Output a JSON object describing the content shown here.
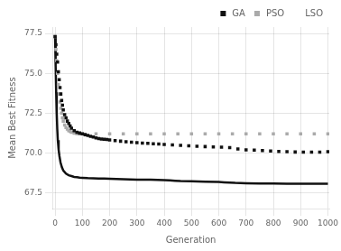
{
  "chart_data": {
    "type": "line",
    "xlabel": "Generation",
    "ylabel": "Mean Best Fitness",
    "xlim": [
      -10,
      1005
    ],
    "ylim": [
      66.5,
      77.9
    ],
    "xticks": [
      0,
      100,
      200,
      300,
      400,
      500,
      600,
      700,
      800,
      900,
      1000
    ],
    "yticks": [
      67.5,
      {
        "value": 70,
        "label": "70.0"
      },
      72.5,
      {
        "value": 75,
        "label": "75.0"
      },
      77.5
    ],
    "grid": true,
    "legend": "upper right",
    "series": [
      {
        "name": "GA",
        "type": "scatter",
        "color": "#111111",
        "marker": "square",
        "line_style": "none",
        "x": [
          0,
          3,
          6,
          9,
          12,
          15,
          18,
          21,
          24,
          27,
          30,
          35,
          40,
          45,
          50,
          55,
          60,
          70,
          80,
          90,
          100,
          110,
          120,
          130,
          140,
          150,
          160,
          170,
          180,
          190,
          200,
          220,
          240,
          260,
          280,
          300,
          320,
          340,
          360,
          380,
          400,
          430,
          460,
          490,
          520,
          550,
          580,
          610,
          640,
          670,
          700,
          730,
          760,
          790,
          820,
          850,
          880,
          910,
          940,
          970,
          1000
        ],
        "values": [
          77.3,
          76.8,
          76.2,
          75.7,
          75.1,
          74.6,
          74.1,
          73.7,
          73.3,
          73.0,
          72.7,
          72.4,
          72.2,
          72.0,
          71.85,
          71.7,
          71.55,
          71.4,
          71.3,
          71.25,
          71.2,
          71.15,
          71.1,
          71.05,
          71.0,
          70.95,
          70.9,
          70.88,
          70.86,
          70.84,
          70.82,
          70.78,
          70.74,
          70.7,
          70.68,
          70.65,
          70.62,
          70.6,
          70.58,
          70.56,
          70.53,
          70.5,
          70.48,
          70.45,
          70.42,
          70.4,
          70.38,
          70.36,
          70.34,
          70.25,
          70.2,
          70.18,
          70.15,
          70.12,
          70.1,
          70.08,
          70.06,
          70.05,
          70.05,
          70.05,
          70.08
        ]
      },
      {
        "name": "PSO",
        "type": "scatter",
        "color": "#aaaaaa",
        "marker": "square",
        "line_style": "none",
        "x": [
          0,
          3,
          6,
          9,
          12,
          15,
          18,
          21,
          24,
          27,
          30,
          35,
          40,
          45,
          50,
          55,
          60,
          70,
          80,
          90,
          100,
          150,
          200,
          250,
          300,
          350,
          400,
          450,
          500,
          550,
          600,
          650,
          700,
          750,
          800,
          850,
          900,
          950,
          1000
        ],
        "values": [
          77.3,
          76.5,
          75.8,
          75.0,
          74.3,
          73.7,
          73.2,
          72.8,
          72.5,
          72.2,
          72.0,
          71.75,
          71.6,
          71.5,
          71.4,
          71.35,
          71.3,
          71.25,
          71.22,
          71.2,
          71.2,
          71.2,
          71.2,
          71.2,
          71.2,
          71.2,
          71.2,
          71.2,
          71.2,
          71.2,
          71.2,
          71.2,
          71.2,
          71.2,
          71.2,
          71.2,
          71.2,
          71.2,
          71.2
        ]
      },
      {
        "name": "LSO",
        "type": "line",
        "color": "#111111",
        "marker": "none",
        "line_style": "solid",
        "x": [
          0,
          2,
          4,
          6,
          8,
          10,
          13,
          16,
          20,
          25,
          30,
          40,
          50,
          60,
          70,
          80,
          90,
          100,
          120,
          140,
          160,
          180,
          200,
          250,
          300,
          350,
          400,
          420,
          440,
          460,
          500,
          550,
          600,
          620,
          640,
          660,
          700,
          750,
          800,
          850,
          900,
          950,
          1000
        ],
        "values": [
          77.3,
          75.5,
          73.8,
          72.5,
          71.5,
          70.8,
          70.2,
          69.8,
          69.4,
          69.1,
          68.9,
          68.7,
          68.6,
          68.55,
          68.5,
          68.48,
          68.45,
          68.44,
          68.42,
          68.41,
          68.4,
          68.39,
          68.38,
          68.35,
          68.33,
          68.32,
          68.3,
          68.28,
          68.26,
          68.24,
          68.22,
          68.2,
          68.18,
          68.16,
          68.14,
          68.12,
          68.1,
          68.09,
          68.08,
          68.07,
          68.07,
          68.07,
          68.07
        ]
      }
    ]
  }
}
